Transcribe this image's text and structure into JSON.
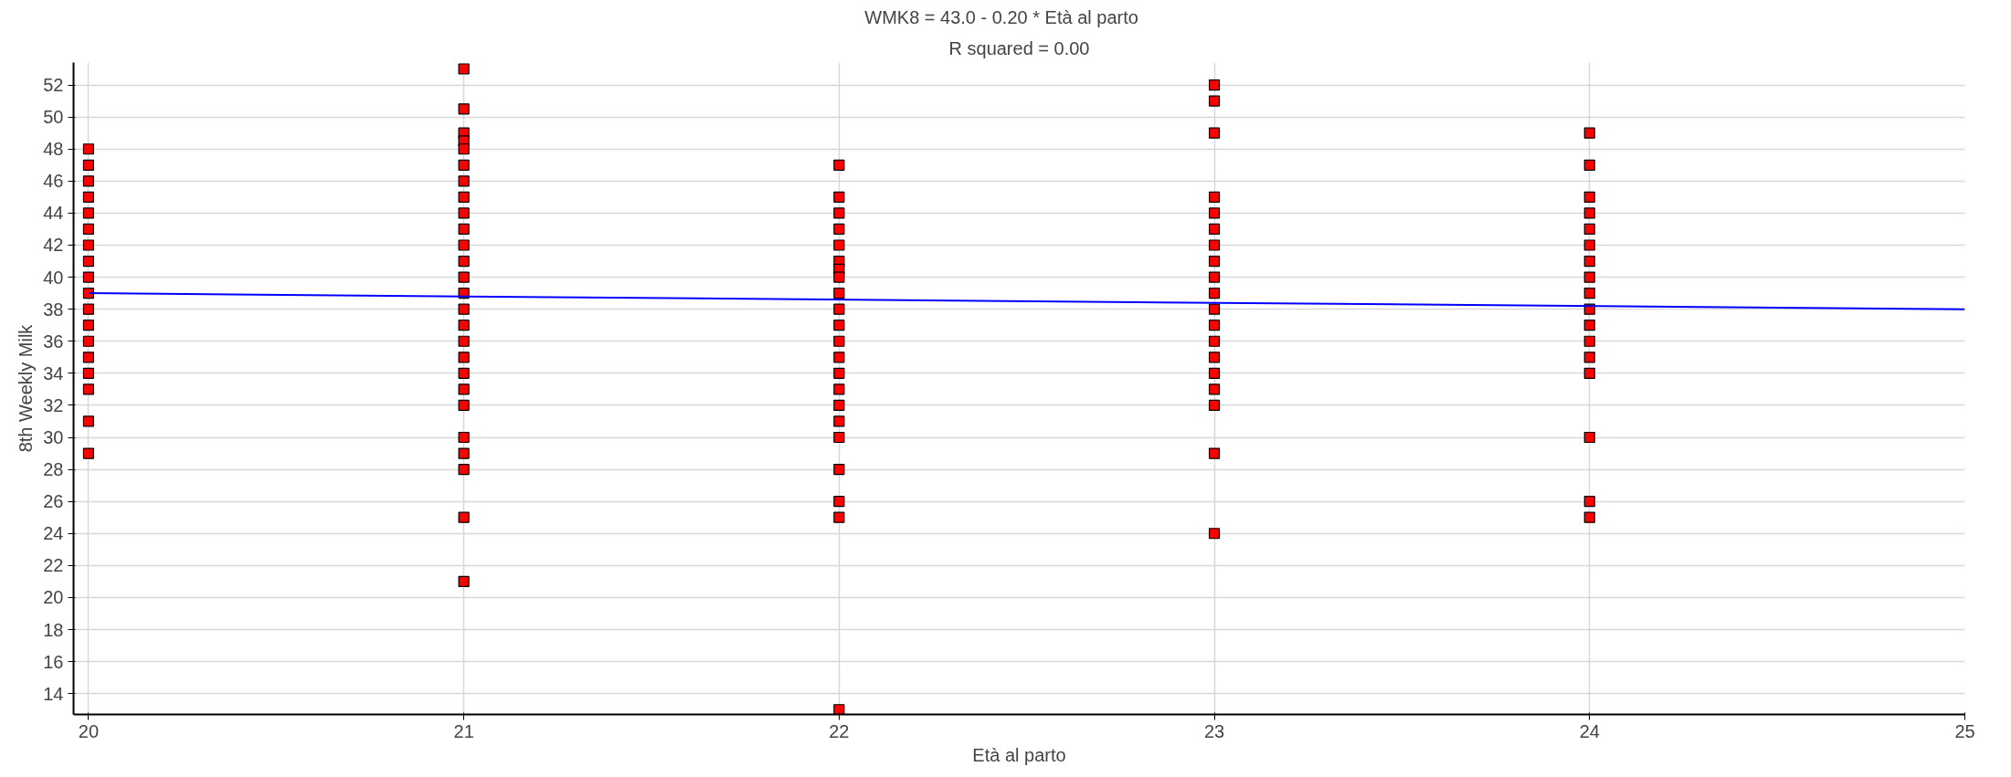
{
  "chart_data": {
    "type": "scatter",
    "title": "WMK8 =    43.0  -    0.20 * Età al parto",
    "subtitle": "R squared = 0.00",
    "xlabel": "Età al parto",
    "ylabel": "8th Weekly Milk",
    "xlim": [
      19.96,
      25
    ],
    "ylim": [
      12.7,
      53.4
    ],
    "xticks": [
      20,
      21,
      22,
      23,
      24,
      25
    ],
    "yticks": [
      14,
      16,
      18,
      20,
      22,
      24,
      26,
      28,
      30,
      32,
      34,
      36,
      38,
      40,
      42,
      44,
      46,
      48,
      50,
      52
    ],
    "grid": true,
    "marker": "square",
    "series": [
      {
        "color": "#ff0000",
        "x": [
          20,
          20,
          20,
          20,
          20,
          20,
          20,
          20,
          20,
          20,
          20,
          20,
          20,
          20,
          20,
          20,
          20,
          20,
          21,
          21,
          21,
          21,
          21,
          21,
          21,
          21,
          21,
          21,
          21,
          21,
          21,
          21,
          21,
          21,
          21,
          21,
          21,
          21,
          21,
          21,
          21,
          21,
          21,
          21,
          22,
          22,
          22,
          22,
          22,
          22,
          22,
          22,
          22,
          22,
          22,
          22,
          22,
          22,
          22,
          22,
          22,
          22,
          22,
          22,
          22,
          22,
          23,
          23,
          23,
          23,
          23,
          23,
          23,
          23,
          23,
          23,
          23,
          23,
          23,
          23,
          23,
          23,
          23,
          23,
          23,
          24,
          24,
          24,
          24,
          24,
          24,
          24,
          24,
          24,
          24,
          24,
          24,
          24,
          24,
          24,
          24,
          24
        ],
        "values": [
          48,
          47,
          46,
          45,
          44,
          43,
          42,
          41,
          40,
          39,
          38,
          37,
          36,
          35,
          34,
          33,
          31,
          29,
          53,
          50.5,
          49,
          48.5,
          48,
          47,
          46,
          45,
          44,
          43,
          42,
          41,
          40,
          39,
          38,
          37,
          36,
          35,
          34,
          33,
          32,
          30,
          29,
          28,
          25,
          21,
          47,
          45,
          44,
          43,
          42,
          41,
          40.5,
          40,
          39,
          38,
          37,
          36,
          35,
          34,
          33,
          32,
          31,
          30,
          28,
          26,
          25,
          13,
          52,
          51,
          49,
          45,
          44,
          43,
          42,
          41,
          40,
          39,
          38,
          37,
          36,
          35,
          34,
          33,
          32,
          29,
          24,
          49,
          47,
          45,
          44,
          43,
          42,
          41,
          40,
          39,
          38,
          37,
          36,
          35,
          34,
          30,
          26,
          25
        ]
      },
      {
        "type": "line",
        "color": "#0000ff",
        "x": [
          20,
          25
        ],
        "values": [
          39.0,
          38.0
        ],
        "line_style": "solid",
        "marker": "none"
      }
    ]
  }
}
